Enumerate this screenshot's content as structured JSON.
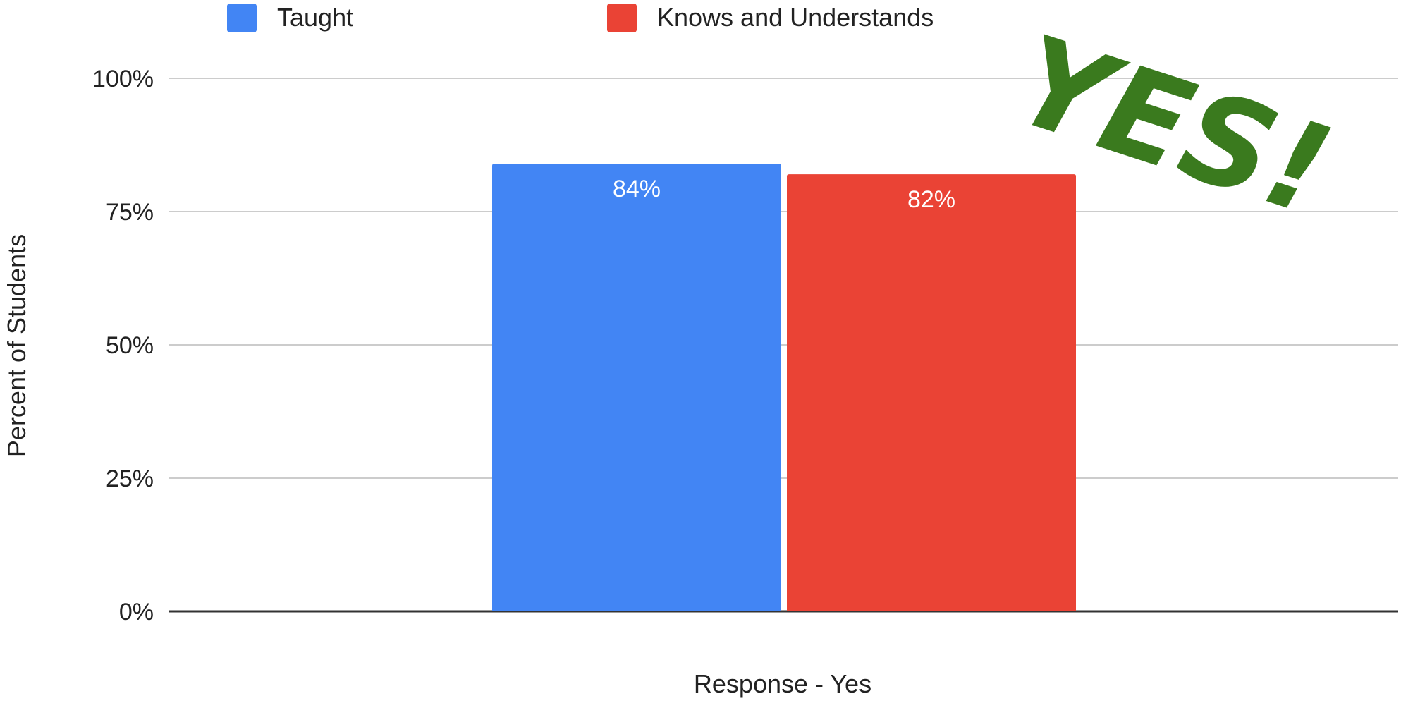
{
  "chart_data": {
    "type": "bar",
    "categories": [
      "Response - Yes"
    ],
    "series": [
      {
        "name": "Taught",
        "values": [
          84
        ],
        "value_labels": [
          "84%"
        ]
      },
      {
        "name": "Knows and Understands",
        "values": [
          82
        ],
        "value_labels": [
          "82%"
        ]
      }
    ],
    "xlabel": "Response - Yes",
    "ylabel": "Percent of Students",
    "ylim": [
      0,
      100
    ],
    "yticks": [
      0,
      25,
      50,
      75,
      100
    ],
    "ytick_labels": [
      "0%",
      "25%",
      "50%",
      "75%",
      "100%"
    ],
    "grid": true,
    "legend_position": "top-left",
    "annotation": {
      "text": "YES!",
      "color": "#3a7a1e"
    }
  },
  "colors": {
    "series": [
      "#4285f4",
      "#ea4335"
    ],
    "gridline": "#cccccc",
    "baseline": "#333333"
  }
}
